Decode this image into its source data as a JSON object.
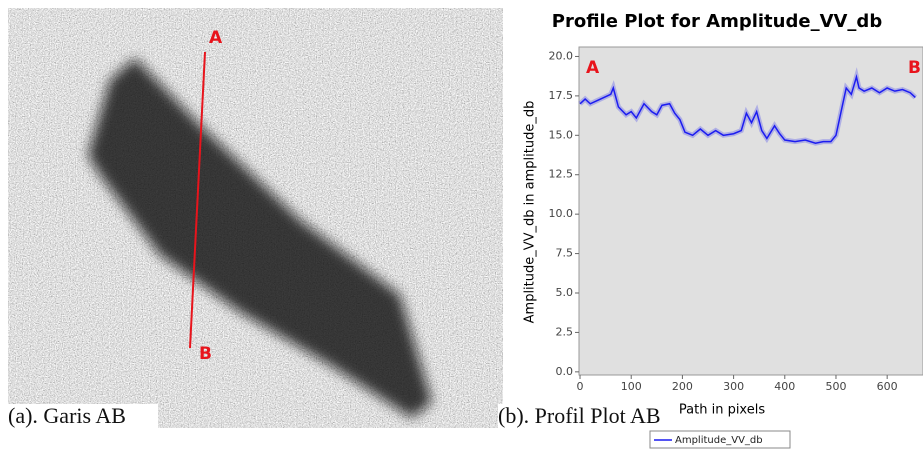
{
  "image": {
    "labels": [
      "A",
      "B"
    ],
    "caption": "(a). Garis AB"
  },
  "chart_data": {
    "type": "line",
    "title": "Profile Plot for Amplitude_VV_db",
    "x_label": "Path in pixels",
    "y_label": "Amplitude_VV_db in amplitude_db",
    "annotations": [
      "A",
      "B"
    ],
    "caption": "(b). Profil Plot AB",
    "x": [
      0,
      10,
      20,
      40,
      60,
      65,
      75,
      90,
      100,
      110,
      125,
      140,
      150,
      160,
      175,
      185,
      195,
      205,
      220,
      235,
      250,
      265,
      280,
      300,
      315,
      325,
      335,
      345,
      355,
      365,
      380,
      390,
      400,
      420,
      440,
      460,
      475,
      490,
      500,
      510,
      520,
      530,
      540,
      545,
      555,
      570,
      585,
      600,
      615,
      630,
      645,
      655
    ],
    "series": [
      {
        "name": "Amplitude_VV_db",
        "color": "#1c1cf0",
        "values": [
          17.0,
          17.3,
          17.0,
          17.3,
          17.6,
          18.0,
          16.8,
          16.3,
          16.5,
          16.1,
          17.0,
          16.5,
          16.3,
          16.9,
          17.0,
          16.4,
          16.0,
          15.2,
          15.0,
          15.4,
          15.0,
          15.3,
          15.0,
          15.1,
          15.3,
          16.4,
          15.8,
          16.5,
          15.3,
          14.8,
          15.6,
          15.1,
          14.7,
          14.6,
          14.7,
          14.5,
          14.6,
          14.6,
          15.0,
          16.5,
          18.0,
          17.6,
          18.7,
          18.0,
          17.8,
          18.0,
          17.7,
          18.0,
          17.8,
          17.9,
          17.7,
          17.4
        ]
      }
    ],
    "xlim": [
      -2,
      670
    ],
    "ylim": [
      -0.2,
      20.6
    ],
    "xticks": [
      0,
      100,
      200,
      300,
      400,
      500,
      600
    ],
    "yticks": [
      {
        "value": 0,
        "label": "0.0"
      },
      {
        "value": 2.5,
        "label": "2.5"
      },
      {
        "value": 5,
        "label": "5.0"
      },
      {
        "value": 7.5,
        "label": "7.5"
      },
      {
        "value": 10,
        "label": "10.0"
      },
      {
        "value": 12.5,
        "label": "12.5"
      },
      {
        "value": 15,
        "label": "15.0"
      },
      {
        "value": 17.5,
        "label": "17.5"
      },
      {
        "value": 20,
        "label": "20.0"
      }
    ],
    "grid": false
  }
}
